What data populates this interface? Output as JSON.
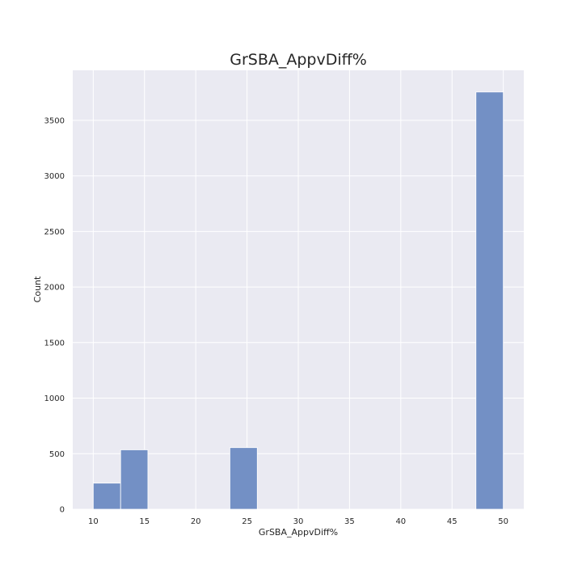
{
  "chart_data": {
    "type": "bar",
    "title": "GrSBA_AppvDiff%",
    "xlabel": "GrSBA_AppvDiff%",
    "ylabel": "Count",
    "xlim": [
      8.0,
      52.0
    ],
    "ylim": [
      0,
      3950
    ],
    "grid": true,
    "x_ticks": [
      10,
      15,
      20,
      25,
      30,
      35,
      40,
      45,
      50
    ],
    "y_ticks": [
      0,
      500,
      1000,
      1500,
      2000,
      2500,
      3000,
      3500
    ],
    "bins": [
      {
        "x0": 10.0,
        "x1": 12.67,
        "count": 235
      },
      {
        "x0": 12.67,
        "x1": 15.33,
        "count": 535
      },
      {
        "x0": 15.33,
        "x1": 18.0,
        "count": 0
      },
      {
        "x0": 18.0,
        "x1": 20.67,
        "count": 0
      },
      {
        "x0": 20.67,
        "x1": 23.33,
        "count": 0
      },
      {
        "x0": 23.33,
        "x1": 26.0,
        "count": 555
      },
      {
        "x0": 26.0,
        "x1": 28.67,
        "count": 0
      },
      {
        "x0": 28.67,
        "x1": 31.33,
        "count": 0
      },
      {
        "x0": 31.33,
        "x1": 34.0,
        "count": 0
      },
      {
        "x0": 34.0,
        "x1": 36.67,
        "count": 0
      },
      {
        "x0": 36.67,
        "x1": 39.33,
        "count": 0
      },
      {
        "x0": 39.33,
        "x1": 42.0,
        "count": 0
      },
      {
        "x0": 42.0,
        "x1": 44.67,
        "count": 0
      },
      {
        "x0": 44.67,
        "x1": 47.33,
        "count": 0
      },
      {
        "x0": 47.33,
        "x1": 50.0,
        "count": 3755
      }
    ],
    "colors": {
      "bar_fill": "#7390c5",
      "bar_edge": "#ffffff",
      "plot_background": "#eaeaf2",
      "grid": "#ffffff"
    }
  }
}
